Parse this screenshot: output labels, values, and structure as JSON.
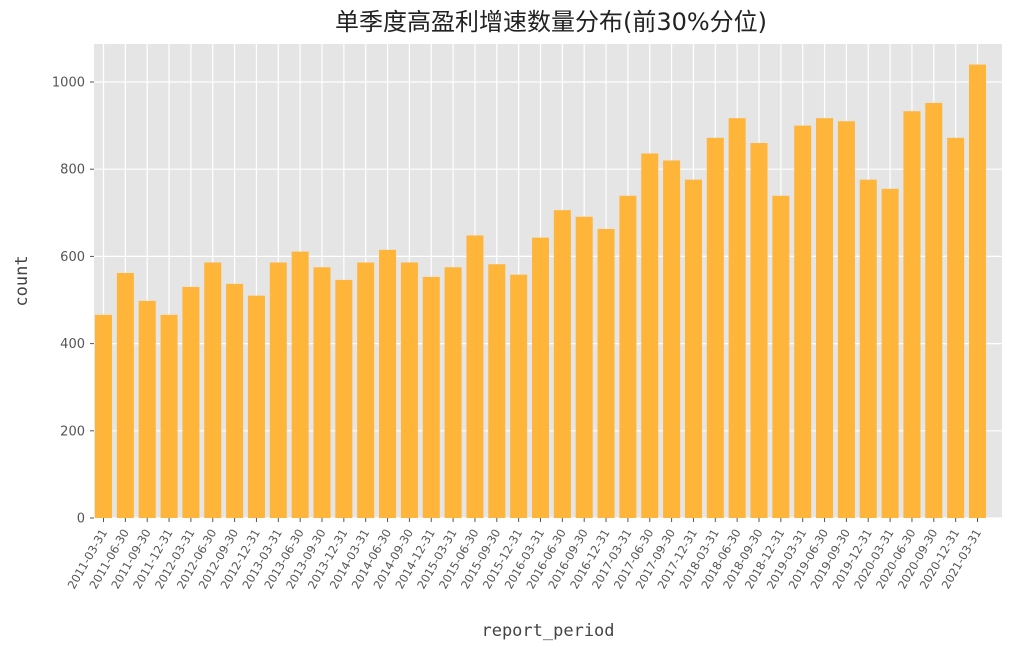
{
  "chart_data": {
    "type": "bar",
    "title": "单季度高盈利增速数量分布(前30%分位)",
    "xlabel": "report_period",
    "ylabel": "count",
    "ylim": [
      0,
      1090
    ],
    "yticks": [
      0,
      200,
      400,
      600,
      800,
      1000
    ],
    "grid": true,
    "bar_color": "#ffb43a",
    "background_color": "#e5e5e5",
    "grid_color": "#ffffff",
    "categories": [
      "2011-03-31",
      "2011-06-30",
      "2011-09-30",
      "2011-12-31",
      "2012-03-31",
      "2012-06-30",
      "2012-09-30",
      "2012-12-31",
      "2013-03-31",
      "2013-06-30",
      "2013-09-30",
      "2013-12-31",
      "2014-03-31",
      "2014-06-30",
      "2014-09-30",
      "2014-12-31",
      "2015-03-31",
      "2015-06-30",
      "2015-09-30",
      "2015-12-31",
      "2016-03-31",
      "2016-06-30",
      "2016-09-30",
      "2016-12-31",
      "2017-03-31",
      "2017-06-30",
      "2017-09-30",
      "2017-12-31",
      "2018-03-31",
      "2018-06-30",
      "2018-09-30",
      "2018-12-31",
      "2019-03-31",
      "2019-06-30",
      "2019-09-30",
      "2019-12-31",
      "2020-03-31",
      "2020-06-30",
      "2020-09-30",
      "2020-12-31",
      "2021-03-31"
    ],
    "values": [
      466,
      562,
      498,
      466,
      530,
      586,
      537,
      510,
      586,
      611,
      575,
      546,
      586,
      615,
      586,
      553,
      575,
      648,
      582,
      558,
      643,
      706,
      691,
      663,
      739,
      836,
      820,
      776,
      872,
      917,
      860,
      739,
      900,
      917,
      910,
      776,
      755,
      933,
      952,
      872,
      1040
    ]
  }
}
